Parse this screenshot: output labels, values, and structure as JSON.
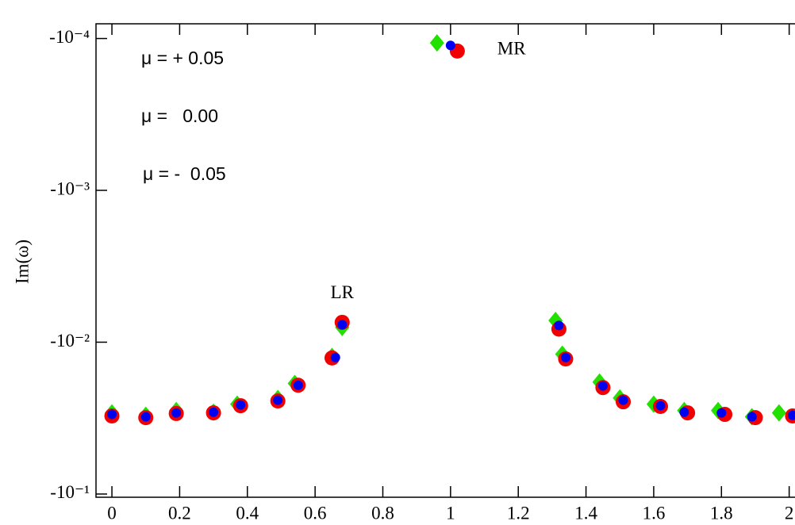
{
  "chart_data": {
    "type": "scatter",
    "y_label": "Im(ω)",
    "y_log": true,
    "xlim": [
      -0.047,
      2.05
    ],
    "xticks": [
      0,
      0.2,
      0.4,
      0.6,
      0.8,
      1,
      1.2,
      1.4,
      1.6,
      1.8,
      2
    ],
    "ylim": [
      -0.105,
      -8e-05
    ],
    "yticks": [
      {
        "value": -0.0001,
        "label": "-10⁻⁴"
      },
      {
        "value": -0.001,
        "label": "-10⁻³"
      },
      {
        "value": -0.01,
        "label": "-10⁻²"
      },
      {
        "value": -0.1,
        "label": "-10⁻¹"
      }
    ],
    "annotations": [
      {
        "text": "MR",
        "x": 1.18,
        "y": -0.000119
      },
      {
        "text": "LR",
        "x": 0.68,
        "y": -0.00483
      }
    ],
    "series": [
      {
        "name": "μ = + 0.05",
        "color": "#22e000",
        "marker": "diamond",
        "x": [
          0,
          0.1,
          0.19,
          0.3,
          0.37,
          0.49,
          0.54,
          0.65,
          0.68,
          0.96,
          1.31,
          1.33,
          1.44,
          1.5,
          1.6,
          1.69,
          1.79,
          1.89,
          1.97
        ],
        "values": [
          -0.0292,
          -0.0303,
          -0.0282,
          -0.0289,
          -0.0256,
          -0.0235,
          -0.0187,
          -0.0124,
          -0.008,
          -0.000107,
          -0.0072,
          -0.012,
          -0.0183,
          -0.0233,
          -0.0256,
          -0.0282,
          -0.0282,
          -0.031,
          -0.0292
        ]
      },
      {
        "name": "μ =   0.00",
        "color": "#0000f0",
        "marker": "small-circle",
        "x": [
          0,
          0.1,
          0.19,
          0.3,
          0.38,
          0.49,
          0.55,
          0.66,
          0.68,
          1.0,
          1.32,
          1.34,
          1.45,
          1.51,
          1.62,
          1.69,
          1.8,
          1.89,
          2.01
        ],
        "values": [
          -0.0299,
          -0.031,
          -0.0292,
          -0.0289,
          -0.0259,
          -0.0241,
          -0.0192,
          -0.0126,
          -0.00767,
          -0.000111,
          -0.00776,
          -0.0126,
          -0.0194,
          -0.0241,
          -0.0262,
          -0.0289,
          -0.0292,
          -0.031,
          -0.0303
        ]
      },
      {
        "name": "μ = -  0.05",
        "color": "#f00000",
        "marker": "circle",
        "x": [
          0,
          0.1,
          0.19,
          0.3,
          0.38,
          0.49,
          0.55,
          0.65,
          0.68,
          1.02,
          1.32,
          1.34,
          1.45,
          1.51,
          1.62,
          1.7,
          1.81,
          1.9,
          2.01
        ],
        "values": [
          -0.0306,
          -0.0314,
          -0.0295,
          -0.0292,
          -0.0262,
          -0.0244,
          -0.0192,
          -0.0127,
          -0.0074,
          -0.000121,
          -0.0082,
          -0.0129,
          -0.0199,
          -0.0247,
          -0.0265,
          -0.0292,
          -0.0299,
          -0.0314,
          -0.0306
        ]
      }
    ]
  }
}
